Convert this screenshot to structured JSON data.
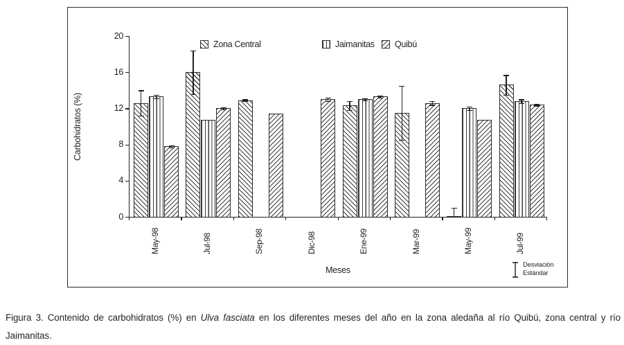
{
  "chart_data": {
    "type": "bar",
    "title": "",
    "xlabel": "Meses",
    "ylabel": "Carbohidratos (%)",
    "ylim": [
      0,
      20
    ],
    "yticks": [
      0,
      4,
      8,
      12,
      16,
      20
    ],
    "grid": false,
    "legend_position": "top-inside",
    "categories": [
      "May-98",
      "Jul-98",
      "Sep-98",
      "Dic-98",
      "Ene-99",
      "Mar-99",
      "May-99",
      "Jul-99"
    ],
    "series": [
      {
        "name": "Zona Central",
        "pattern": "diagonal-down",
        "values": [
          12.6,
          16.0,
          12.9,
          null,
          12.3,
          11.5,
          0.1,
          14.6
        ],
        "errors": [
          1.4,
          2.4,
          0.1,
          null,
          0.5,
          3.0,
          0.9,
          1.1
        ]
      },
      {
        "name": "Jaimanitas",
        "pattern": "vertical",
        "values": [
          13.3,
          10.7,
          null,
          null,
          13.0,
          null,
          12.0,
          12.8
        ],
        "errors": [
          0.2,
          0,
          null,
          null,
          0.1,
          null,
          0.2,
          0.2
        ]
      },
      {
        "name": "Quibú",
        "pattern": "diagonal-up",
        "values": [
          7.8,
          12.0,
          11.4,
          13.0,
          13.3,
          12.6,
          10.7,
          12.4
        ],
        "errors": [
          0.1,
          0.1,
          0,
          0.2,
          0.1,
          0.2,
          0,
          0.1
        ]
      }
    ],
    "error_note_lines": [
      "Desviación",
      "Estándar"
    ]
  },
  "caption": {
    "parts": [
      {
        "text": "Figura 3. Contenido de carbohidratos (%) en ",
        "italic": false
      },
      {
        "text": "Ulva fasciata",
        "italic": true
      },
      {
        "text": " en los diferentes meses del año en la zona aledaña al río Quibú, zona central y río Jaimanitas.",
        "italic": false
      }
    ]
  }
}
